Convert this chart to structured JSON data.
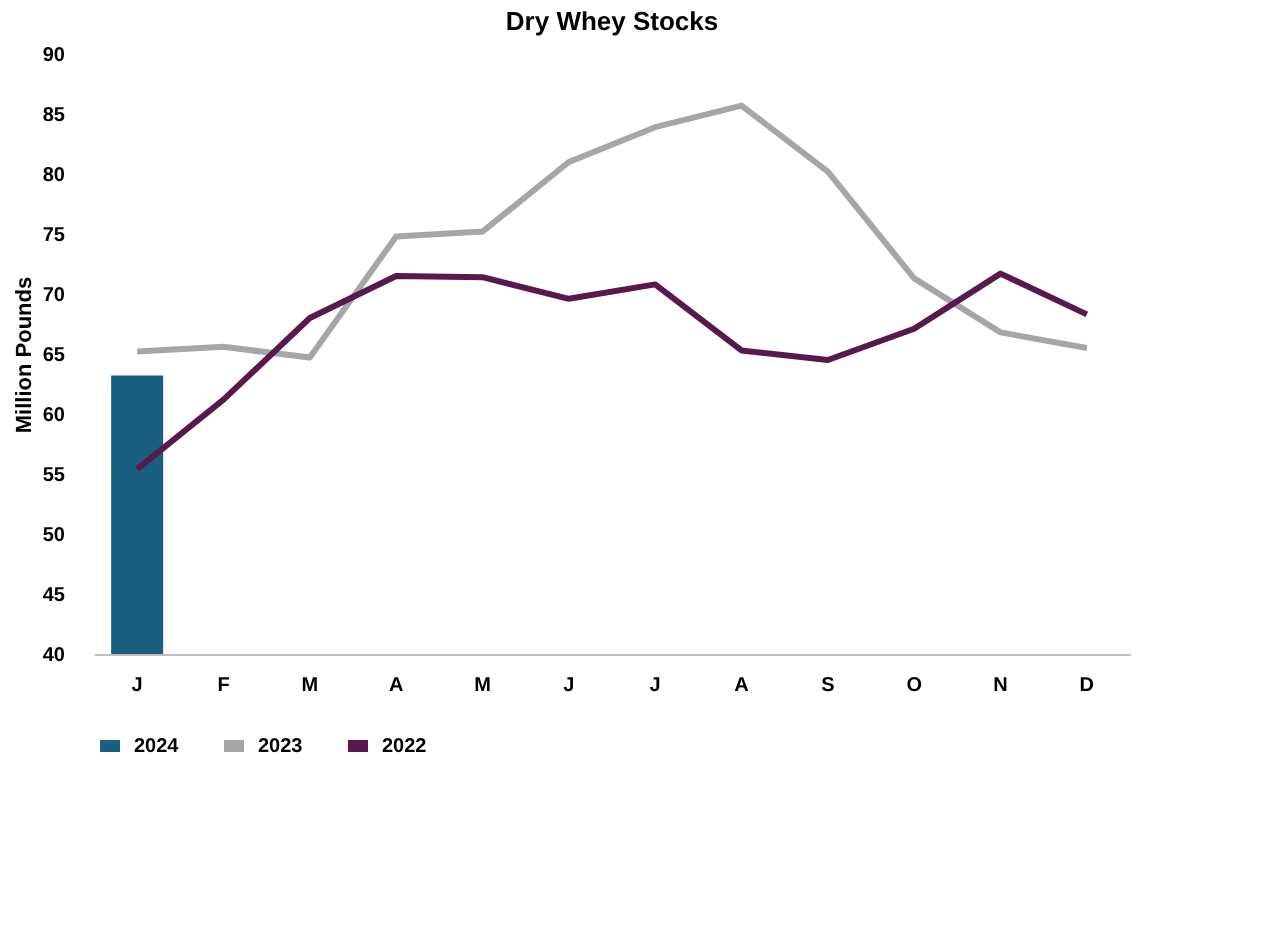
{
  "chart_data": {
    "type": "line",
    "title": "Dry Whey Stocks",
    "ylabel": "Million Pounds",
    "categories": [
      "J",
      "F",
      "M",
      "A",
      "M",
      "J",
      "J",
      "A",
      "S",
      "O",
      "N",
      "D"
    ],
    "series": [
      {
        "name": "2024",
        "type": "bar",
        "color": "#1a5e80",
        "values": [
          63.2,
          null,
          null,
          null,
          null,
          null,
          null,
          null,
          null,
          null,
          null,
          null
        ]
      },
      {
        "name": "2023",
        "color": "#a6a6a6",
        "values": [
          65.2,
          65.6,
          64.7,
          74.8,
          75.2,
          81.0,
          83.9,
          85.7,
          80.2,
          71.3,
          66.8,
          65.5
        ]
      },
      {
        "name": "2022",
        "color": "#58194f",
        "values": [
          55.4,
          61.2,
          68.0,
          71.5,
          71.4,
          69.6,
          70.8,
          65.3,
          64.5,
          67.1,
          71.7,
          68.3
        ]
      }
    ],
    "ylim": [
      40,
      90
    ],
    "yticks": [
      40,
      45,
      50,
      55,
      60,
      65,
      70,
      75,
      80,
      85,
      90
    ],
    "grid": false,
    "legend": "bottom"
  }
}
